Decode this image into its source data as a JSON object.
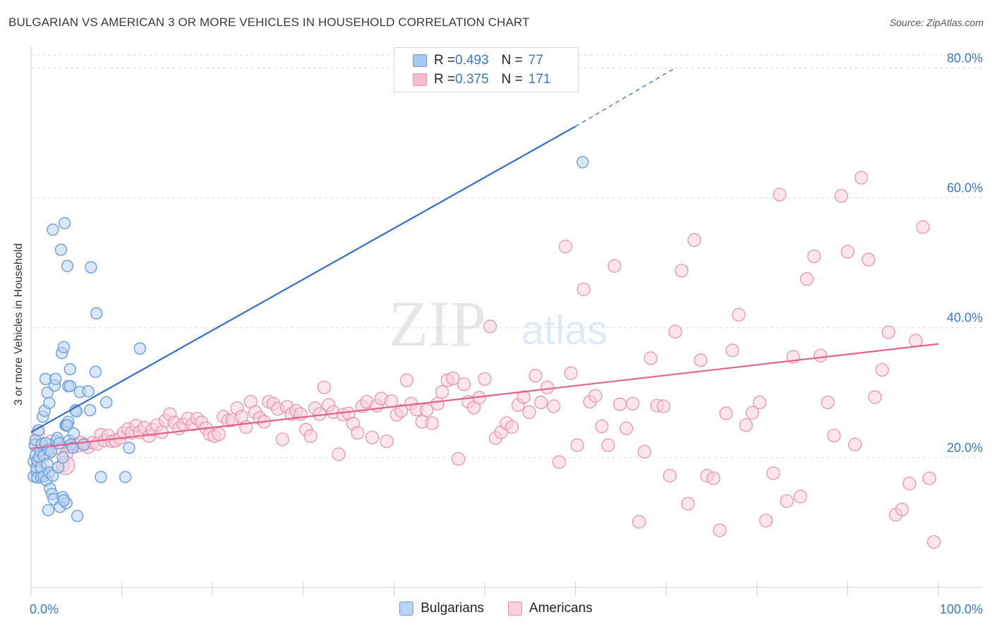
{
  "title": "BULGARIAN VS AMERICAN 3 OR MORE VEHICLES IN HOUSEHOLD CORRELATION CHART",
  "source": "Source: ZipAtlas.com",
  "watermark": {
    "zip": "ZIP",
    "atlas": "atlas"
  },
  "legend_top": [
    {
      "r_label": "R = ",
      "r_value": "0.493",
      "n_label": "N = ",
      "n_value": "77",
      "color": "#a9c8ef",
      "stroke": "#6a9fdc"
    },
    {
      "r_label": "R = ",
      "r_value": "0.375",
      "n_label": "N = ",
      "n_value": "171",
      "color": "#f5bccb",
      "stroke": "#e890aa"
    }
  ],
  "legend_bottom": [
    {
      "label": "Bulgarians",
      "color": "#b9d3f3",
      "stroke": "#6a9fdc"
    },
    {
      "label": "Americans",
      "color": "#f9cfdb",
      "stroke": "#e890aa"
    }
  ],
  "chart_data": {
    "type": "scatter",
    "title": "BULGARIAN VS AMERICAN 3 OR MORE VEHICLES IN HOUSEHOLD CORRELATION CHART",
    "xlabel": "",
    "ylabel": "3 or more Vehicles in Household",
    "xlim": [
      0,
      100
    ],
    "ylim": [
      0,
      82
    ],
    "x_ticks": [
      "0.0%",
      "100.0%"
    ],
    "y_ticks": [
      {
        "value": 20,
        "label": "20.0%"
      },
      {
        "value": 40,
        "label": "40.0%"
      },
      {
        "value": 60,
        "label": "60.0%"
      },
      {
        "value": 80,
        "label": "80.0%"
      }
    ],
    "grid": "horizontal dashed",
    "legend_placement": "top-center",
    "series": [
      {
        "name": "Bulgarians",
        "color": "#6a9fdc",
        "fill": "#b9d3f3",
        "trend": {
          "x0": 0,
          "y0": 23.9,
          "x1": 60,
          "y1": 71.0,
          "dashed_to_x": 71,
          "dashed_to_y": 80.0,
          "color": "#2f6fcc"
        },
        "points": [
          [
            0.3,
            17.1
          ],
          [
            0.3,
            19.4
          ],
          [
            0.4,
            21.9
          ],
          [
            0.5,
            20.3
          ],
          [
            0.5,
            22.7
          ],
          [
            0.6,
            17.9
          ],
          [
            0.6,
            18.4
          ],
          [
            0.7,
            16.9
          ],
          [
            0.7,
            19.5
          ],
          [
            0.8,
            24.2
          ],
          [
            0.9,
            20.1
          ],
          [
            1.0,
            21.1
          ],
          [
            1.1,
            17.0
          ],
          [
            1.1,
            18.5
          ],
          [
            1.2,
            22.1
          ],
          [
            1.3,
            26.3
          ],
          [
            1.4,
            20.3
          ],
          [
            1.4,
            17.1
          ],
          [
            1.5,
            27.2
          ],
          [
            1.6,
            32.1
          ],
          [
            1.6,
            22.2
          ],
          [
            1.7,
            16.5
          ],
          [
            1.8,
            30.0
          ],
          [
            1.8,
            19.0
          ],
          [
            1.9,
            21.2
          ],
          [
            2.0,
            28.4
          ],
          [
            2.0,
            17.7
          ],
          [
            2.1,
            15.2
          ],
          [
            2.2,
            20.9
          ],
          [
            2.3,
            14.4
          ],
          [
            2.4,
            17.2
          ],
          [
            2.4,
            55.1
          ],
          [
            2.5,
            13.6
          ],
          [
            2.6,
            31.1
          ],
          [
            2.7,
            32.1
          ],
          [
            2.8,
            22.6
          ],
          [
            2.9,
            23.0
          ],
          [
            3.0,
            18.5
          ],
          [
            3.1,
            22.2
          ],
          [
            3.2,
            12.4
          ],
          [
            3.3,
            52.0
          ],
          [
            3.4,
            36.1
          ],
          [
            3.5,
            13.9
          ],
          [
            3.6,
            37.0
          ],
          [
            3.7,
            56.1
          ],
          [
            3.8,
            25.0
          ],
          [
            3.9,
            24.9
          ],
          [
            4.0,
            49.5
          ],
          [
            4.1,
            31.0
          ],
          [
            4.1,
            25.5
          ],
          [
            4.2,
            22.6
          ],
          [
            4.3,
            33.6
          ],
          [
            4.3,
            31.0
          ],
          [
            4.4,
            22.0
          ],
          [
            3.9,
            13.0
          ],
          [
            3.6,
            13.4
          ],
          [
            4.0,
            25.0
          ],
          [
            4.6,
            21.5
          ],
          [
            4.7,
            23.7
          ],
          [
            4.9,
            27.3
          ],
          [
            5.0,
            27.1
          ],
          [
            5.1,
            11.0
          ],
          [
            5.4,
            30.1
          ],
          [
            5.8,
            22.0
          ],
          [
            6.3,
            30.2
          ],
          [
            6.5,
            27.3
          ],
          [
            6.6,
            49.3
          ],
          [
            7.1,
            33.2
          ],
          [
            7.2,
            42.2
          ],
          [
            7.7,
            17.0
          ],
          [
            8.3,
            28.5
          ],
          [
            10.4,
            17.0
          ],
          [
            10.8,
            21.5
          ],
          [
            12.0,
            36.8
          ],
          [
            3.5,
            20.0
          ],
          [
            1.9,
            11.9
          ],
          [
            60.8,
            65.5
          ]
        ]
      },
      {
        "name": "Americans",
        "color": "#e890aa",
        "fill": "#f9cfdb",
        "trend": {
          "x0": 0,
          "y0": 21.4,
          "x1": 100,
          "y1": 37.5,
          "color": "#e0628d"
        },
        "points": [
          [
            0.5,
            22.0
          ],
          [
            0.8,
            23.8
          ],
          [
            1.5,
            21.5
          ],
          [
            1.8,
            20.5
          ],
          [
            2.2,
            22.5
          ],
          [
            3.0,
            21.5
          ],
          [
            3.5,
            18.8
          ],
          [
            3.9,
            20.5
          ],
          [
            4.3,
            21.7
          ],
          [
            4.8,
            22.1
          ],
          [
            5.2,
            21.8
          ],
          [
            5.5,
            22.3
          ],
          [
            5.9,
            22.0
          ],
          [
            6.3,
            21.6
          ],
          [
            6.8,
            22.3
          ],
          [
            7.3,
            22.1
          ],
          [
            7.7,
            23.5
          ],
          [
            8.1,
            22.6
          ],
          [
            8.5,
            23.4
          ],
          [
            8.9,
            22.5
          ],
          [
            9.3,
            22.6
          ],
          [
            9.8,
            23.0
          ],
          [
            10.2,
            23.8
          ],
          [
            10.7,
            24.4
          ],
          [
            11.1,
            23.8
          ],
          [
            11.6,
            24.9
          ],
          [
            12.0,
            23.9
          ],
          [
            12.5,
            24.6
          ],
          [
            13.0,
            23.3
          ],
          [
            13.4,
            24.3
          ],
          [
            13.9,
            25.0
          ],
          [
            14.4,
            23.9
          ],
          [
            14.8,
            25.7
          ],
          [
            15.3,
            26.7
          ],
          [
            15.8,
            25.4
          ],
          [
            16.3,
            24.5
          ],
          [
            16.8,
            25.1
          ],
          [
            17.3,
            26.0
          ],
          [
            17.8,
            25.1
          ],
          [
            18.3,
            26.0
          ],
          [
            18.8,
            25.4
          ],
          [
            19.3,
            24.5
          ],
          [
            19.7,
            23.6
          ],
          [
            20.2,
            23.3
          ],
          [
            20.7,
            23.6
          ],
          [
            21.2,
            26.3
          ],
          [
            21.7,
            25.7
          ],
          [
            22.2,
            25.8
          ],
          [
            22.7,
            27.6
          ],
          [
            23.2,
            26.3
          ],
          [
            23.7,
            24.7
          ],
          [
            24.2,
            28.6
          ],
          [
            24.7,
            27.0
          ],
          [
            25.2,
            26.1
          ],
          [
            25.7,
            25.5
          ],
          [
            26.2,
            28.6
          ],
          [
            26.7,
            28.3
          ],
          [
            27.2,
            27.5
          ],
          [
            27.7,
            22.8
          ],
          [
            28.2,
            27.8
          ],
          [
            28.7,
            26.7
          ],
          [
            29.2,
            27.2
          ],
          [
            29.7,
            26.7
          ],
          [
            30.3,
            24.3
          ],
          [
            30.8,
            23.3
          ],
          [
            31.3,
            27.6
          ],
          [
            31.8,
            26.7
          ],
          [
            32.3,
            30.8
          ],
          [
            32.8,
            28.1
          ],
          [
            33.3,
            27.0
          ],
          [
            33.9,
            20.5
          ],
          [
            34.4,
            26.6
          ],
          [
            35.0,
            26.8
          ],
          [
            35.5,
            25.2
          ],
          [
            36.0,
            23.8
          ],
          [
            36.5,
            27.9
          ],
          [
            37.0,
            28.6
          ],
          [
            37.6,
            23.1
          ],
          [
            38.1,
            28.0
          ],
          [
            38.6,
            29.1
          ],
          [
            39.2,
            22.5
          ],
          [
            39.7,
            28.7
          ],
          [
            40.3,
            26.6
          ],
          [
            40.8,
            27.2
          ],
          [
            41.4,
            31.9
          ],
          [
            41.9,
            28.3
          ],
          [
            42.5,
            27.4
          ],
          [
            43.1,
            25.5
          ],
          [
            43.6,
            27.3
          ],
          [
            44.2,
            25.3
          ],
          [
            44.8,
            28.3
          ],
          [
            45.3,
            30.1
          ],
          [
            45.9,
            31.9
          ],
          [
            46.5,
            32.2
          ],
          [
            47.1,
            19.8
          ],
          [
            47.7,
            31.3
          ],
          [
            48.2,
            28.6
          ],
          [
            48.8,
            27.7
          ],
          [
            49.4,
            29.2
          ],
          [
            50.0,
            32.1
          ],
          [
            50.6,
            40.2
          ],
          [
            51.2,
            23.0
          ],
          [
            51.8,
            23.9
          ],
          [
            52.4,
            25.3
          ],
          [
            53.0,
            24.7
          ],
          [
            53.7,
            28.1
          ],
          [
            54.3,
            29.3
          ],
          [
            54.9,
            27.0
          ],
          [
            55.6,
            32.6
          ],
          [
            56.2,
            28.5
          ],
          [
            56.9,
            30.8
          ],
          [
            57.6,
            27.9
          ],
          [
            58.2,
            19.3
          ],
          [
            58.9,
            52.5
          ],
          [
            59.5,
            33.0
          ],
          [
            60.2,
            21.9
          ],
          [
            60.9,
            45.9
          ],
          [
            61.6,
            28.6
          ],
          [
            62.2,
            29.5
          ],
          [
            62.9,
            24.8
          ],
          [
            63.6,
            21.9
          ],
          [
            64.3,
            49.5
          ],
          [
            64.9,
            28.2
          ],
          [
            65.6,
            24.5
          ],
          [
            66.3,
            28.3
          ],
          [
            67.0,
            10.1
          ],
          [
            67.6,
            20.9
          ],
          [
            68.3,
            35.3
          ],
          [
            69.0,
            28.0
          ],
          [
            69.7,
            27.9
          ],
          [
            70.4,
            17.2
          ],
          [
            71.0,
            39.4
          ],
          [
            71.7,
            48.8
          ],
          [
            72.4,
            12.9
          ],
          [
            73.1,
            53.5
          ],
          [
            73.8,
            35.0
          ],
          [
            74.5,
            17.2
          ],
          [
            75.2,
            16.8
          ],
          [
            75.9,
            8.8
          ],
          [
            76.6,
            26.8
          ],
          [
            77.3,
            36.5
          ],
          [
            78.0,
            42.0
          ],
          [
            78.8,
            25.0
          ],
          [
            79.5,
            26.9
          ],
          [
            80.3,
            28.5
          ],
          [
            81.0,
            10.3
          ],
          [
            81.8,
            17.6
          ],
          [
            82.5,
            60.5
          ],
          [
            83.3,
            13.3
          ],
          [
            84.0,
            35.5
          ],
          [
            84.8,
            14.0
          ],
          [
            85.5,
            47.5
          ],
          [
            86.3,
            51.0
          ],
          [
            87.0,
            35.7
          ],
          [
            87.8,
            28.5
          ],
          [
            88.5,
            23.4
          ],
          [
            89.3,
            60.3
          ],
          [
            90.0,
            51.7
          ],
          [
            90.8,
            22.0
          ],
          [
            91.5,
            63.1
          ],
          [
            92.3,
            50.5
          ],
          [
            93.0,
            29.3
          ],
          [
            93.8,
            33.5
          ],
          [
            94.5,
            39.3
          ],
          [
            95.3,
            11.2
          ],
          [
            96.0,
            12.0
          ],
          [
            96.8,
            16.0
          ],
          [
            97.5,
            38.0
          ],
          [
            98.3,
            55.5
          ],
          [
            99.0,
            16.8
          ],
          [
            99.5,
            7.0
          ]
        ]
      }
    ]
  }
}
